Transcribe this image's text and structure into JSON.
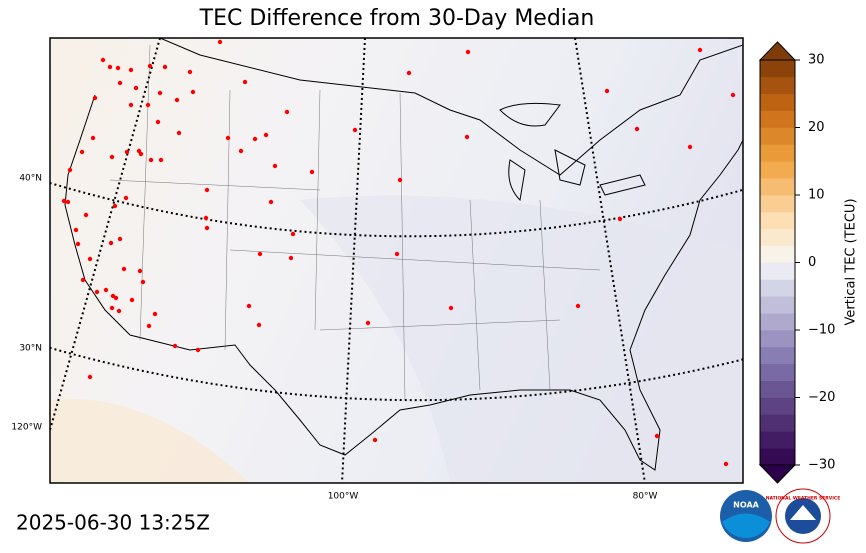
{
  "title": "TEC Difference from 30-Day Median",
  "colorbar": {
    "label": "Vertical TEC (TECU)",
    "lim": [
      -30,
      30
    ],
    "ticks": [
      30,
      20,
      10,
      0,
      {
        "value": -10,
        "label": "−10"
      },
      {
        "value": -20,
        "label": "−20"
      },
      {
        "value": -30,
        "label": "−30"
      }
    ]
  },
  "lat_labels": [
    "40°N",
    "30°N"
  ],
  "lon_labels": [
    "120°W",
    "100°W",
    "80°W"
  ],
  "timestamp": "2025-06-30 13:25Z",
  "logos": {
    "noaa": "NOAA",
    "nws": "NATIONAL WEATHER SERVICE"
  }
}
